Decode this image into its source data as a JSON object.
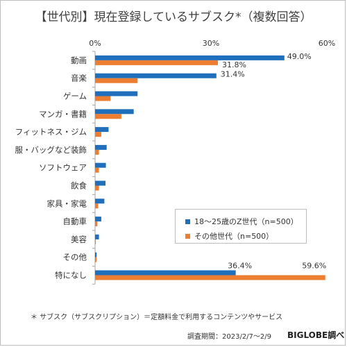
{
  "title": "【世代別】現在登録しているサブスク*（複数回答）",
  "footnote": "＊ サブスク（サブスクリプション）＝定額料金で利用するコンテンツやサービス",
  "period": "調査期間：2023/2/7～2/9",
  "source": "BIGLOBE調べ",
  "colors": {
    "series1": "#1f6fbd",
    "series2": "#ed7d31",
    "axis": "#a6a6a6",
    "text": "#333333"
  },
  "chart_data": {
    "type": "bar",
    "orientation": "horizontal",
    "xlim": [
      0,
      60
    ],
    "ticks": [
      "0%",
      "30%",
      "60%"
    ],
    "tick_values": [
      0,
      30,
      60
    ],
    "categories": [
      "動画",
      "音楽",
      "ゲーム",
      "マンガ・書籍",
      "フィットネス・ジム",
      "服・バッグなど装飾",
      "ソフトウェア",
      "飲食",
      "家具・家電",
      "自動車",
      "美容",
      "その他",
      "特になし"
    ],
    "series": [
      {
        "name": "18～25歳のZ世代（n=500）",
        "color": "#1f6fbd",
        "values": [
          49.0,
          31.4,
          11.0,
          10.0,
          3.5,
          3.0,
          2.8,
          2.7,
          2.4,
          1.6,
          1.0,
          0.4,
          36.4
        ]
      },
      {
        "name": "その他世代（n=500）",
        "color": "#ed7d31",
        "values": [
          31.8,
          11.0,
          4.0,
          6.8,
          1.6,
          1.0,
          1.0,
          1.0,
          0.8,
          0.6,
          0.2,
          0.4,
          59.6
        ]
      }
    ],
    "data_labels": [
      {
        "series": 0,
        "index": 0,
        "text": "49.0%"
      },
      {
        "series": 1,
        "index": 0,
        "text": "31.8%"
      },
      {
        "series": 0,
        "index": 1,
        "text": "31.4%"
      },
      {
        "series": 0,
        "index": 12,
        "text": "36.4%"
      },
      {
        "series": 1,
        "index": 12,
        "text": "59.6%"
      }
    ],
    "legend_position": "center-right"
  }
}
